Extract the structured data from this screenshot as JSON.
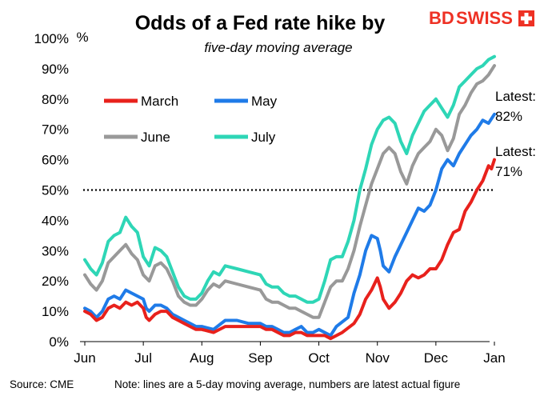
{
  "brand": {
    "logo_text_bd": "BD",
    "logo_text_swiss": "SWISS",
    "color": "#ee3124"
  },
  "footer": {
    "source": "Source: CME",
    "note": "Note: lines are a 5-day moving average, numbers are latest actual figure"
  },
  "chart_data": {
    "type": "line",
    "title": "Odds of a Fed rate hike by",
    "subtitle": "five-day moving average",
    "ylabel": "%",
    "xlabel": "",
    "ylim": [
      0,
      100
    ],
    "xlim": [
      0,
      7.0
    ],
    "y_ticks": [
      0,
      10,
      20,
      30,
      40,
      50,
      60,
      70,
      80,
      90,
      100
    ],
    "y_tick_labels": [
      "0%",
      "10%",
      "20%",
      "30%",
      "40%",
      "50%",
      "60%",
      "70%",
      "80%",
      "90%",
      "100%"
    ],
    "x_ticks": [
      0,
      1,
      2,
      3,
      4,
      5,
      6,
      7
    ],
    "x_tick_labels": [
      "Jun",
      "Jul",
      "Aug",
      "Sep",
      "Oct",
      "Nov",
      "Dec",
      "Jan"
    ],
    "reference_line": {
      "y": 50,
      "style": "dotted",
      "color": "#000000"
    },
    "legend": {
      "position": "upper-left",
      "columns": 2
    },
    "annotations": [
      {
        "line1": "Latest:",
        "line2": "82%",
        "x": 7.0,
        "y": 80
      },
      {
        "line1": "Latest:",
        "line2": "71%",
        "x": 7.0,
        "y": 60
      }
    ],
    "series": [
      {
        "name": "March",
        "color": "#e8211c",
        "points": [
          [
            0,
            10
          ],
          [
            0.1,
            9
          ],
          [
            0.2,
            7
          ],
          [
            0.3,
            8
          ],
          [
            0.4,
            11
          ],
          [
            0.5,
            12
          ],
          [
            0.6,
            11
          ],
          [
            0.7,
            13
          ],
          [
            0.8,
            12
          ],
          [
            0.9,
            13
          ],
          [
            1.0,
            11
          ],
          [
            1.05,
            8
          ],
          [
            1.1,
            7
          ],
          [
            1.2,
            9
          ],
          [
            1.3,
            10
          ],
          [
            1.4,
            10
          ],
          [
            1.5,
            8
          ],
          [
            1.6,
            7
          ],
          [
            1.7,
            6
          ],
          [
            1.8,
            5
          ],
          [
            1.9,
            4
          ],
          [
            2.0,
            4
          ],
          [
            2.2,
            3
          ],
          [
            2.4,
            5
          ],
          [
            2.6,
            5
          ],
          [
            2.8,
            5
          ],
          [
            3.0,
            5
          ],
          [
            3.1,
            4
          ],
          [
            3.2,
            4
          ],
          [
            3.3,
            3
          ],
          [
            3.4,
            2
          ],
          [
            3.5,
            2
          ],
          [
            3.6,
            3
          ],
          [
            3.7,
            3
          ],
          [
            3.8,
            2
          ],
          [
            3.9,
            2
          ],
          [
            4.0,
            2
          ],
          [
            4.1,
            2
          ],
          [
            4.2,
            1
          ],
          [
            4.4,
            3
          ],
          [
            4.6,
            6
          ],
          [
            4.7,
            9
          ],
          [
            4.8,
            14
          ],
          [
            4.9,
            17
          ],
          [
            5.0,
            21
          ],
          [
            5.05,
            18
          ],
          [
            5.1,
            14
          ],
          [
            5.2,
            11
          ],
          [
            5.3,
            13
          ],
          [
            5.4,
            16
          ],
          [
            5.5,
            20
          ],
          [
            5.6,
            22
          ],
          [
            5.7,
            21
          ],
          [
            5.8,
            22
          ],
          [
            5.9,
            24
          ],
          [
            6.0,
            24
          ],
          [
            6.1,
            27
          ],
          [
            6.2,
            32
          ],
          [
            6.3,
            36
          ],
          [
            6.4,
            37
          ],
          [
            6.5,
            43
          ],
          [
            6.6,
            46
          ],
          [
            6.7,
            50
          ],
          [
            6.8,
            53
          ],
          [
            6.9,
            58
          ],
          [
            6.95,
            57
          ],
          [
            7.0,
            60
          ]
        ]
      },
      {
        "name": "May",
        "color": "#1f7be8",
        "points": [
          [
            0,
            11
          ],
          [
            0.1,
            10
          ],
          [
            0.2,
            8
          ],
          [
            0.3,
            10
          ],
          [
            0.4,
            14
          ],
          [
            0.5,
            15
          ],
          [
            0.6,
            14
          ],
          [
            0.7,
            17
          ],
          [
            0.8,
            16
          ],
          [
            0.9,
            15
          ],
          [
            1.0,
            14
          ],
          [
            1.05,
            11
          ],
          [
            1.1,
            10
          ],
          [
            1.2,
            12
          ],
          [
            1.3,
            12
          ],
          [
            1.4,
            11
          ],
          [
            1.5,
            9
          ],
          [
            1.6,
            8
          ],
          [
            1.7,
            7
          ],
          [
            1.8,
            6
          ],
          [
            1.9,
            5
          ],
          [
            2.0,
            5
          ],
          [
            2.2,
            4
          ],
          [
            2.4,
            7
          ],
          [
            2.6,
            7
          ],
          [
            2.8,
            6
          ],
          [
            3.0,
            6
          ],
          [
            3.1,
            5
          ],
          [
            3.2,
            5
          ],
          [
            3.3,
            4
          ],
          [
            3.4,
            3
          ],
          [
            3.5,
            3
          ],
          [
            3.6,
            4
          ],
          [
            3.7,
            5
          ],
          [
            3.8,
            3
          ],
          [
            3.9,
            3
          ],
          [
            4.0,
            4
          ],
          [
            4.1,
            3
          ],
          [
            4.2,
            2
          ],
          [
            4.3,
            5
          ],
          [
            4.5,
            8
          ],
          [
            4.6,
            16
          ],
          [
            4.7,
            22
          ],
          [
            4.8,
            30
          ],
          [
            4.9,
            35
          ],
          [
            5.0,
            34
          ],
          [
            5.05,
            30
          ],
          [
            5.1,
            25
          ],
          [
            5.2,
            23
          ],
          [
            5.3,
            28
          ],
          [
            5.4,
            32
          ],
          [
            5.5,
            36
          ],
          [
            5.6,
            40
          ],
          [
            5.7,
            44
          ],
          [
            5.8,
            43
          ],
          [
            5.9,
            45
          ],
          [
            6.0,
            50
          ],
          [
            6.1,
            57
          ],
          [
            6.2,
            60
          ],
          [
            6.3,
            58
          ],
          [
            6.4,
            62
          ],
          [
            6.5,
            65
          ],
          [
            6.6,
            68
          ],
          [
            6.7,
            70
          ],
          [
            6.8,
            73
          ],
          [
            6.9,
            72
          ],
          [
            7.0,
            75
          ]
        ]
      },
      {
        "name": "June",
        "color": "#999999",
        "points": [
          [
            0,
            22
          ],
          [
            0.1,
            19
          ],
          [
            0.2,
            17
          ],
          [
            0.3,
            20
          ],
          [
            0.4,
            26
          ],
          [
            0.5,
            28
          ],
          [
            0.6,
            30
          ],
          [
            0.7,
            32
          ],
          [
            0.8,
            29
          ],
          [
            0.9,
            27
          ],
          [
            1.0,
            22
          ],
          [
            1.1,
            20
          ],
          [
            1.2,
            25
          ],
          [
            1.3,
            26
          ],
          [
            1.4,
            24
          ],
          [
            1.5,
            20
          ],
          [
            1.6,
            15
          ],
          [
            1.7,
            13
          ],
          [
            1.8,
            12
          ],
          [
            1.9,
            12
          ],
          [
            2.0,
            14
          ],
          [
            2.1,
            17
          ],
          [
            2.2,
            19
          ],
          [
            2.3,
            18
          ],
          [
            2.4,
            20
          ],
          [
            2.6,
            19
          ],
          [
            2.8,
            18
          ],
          [
            3.0,
            17
          ],
          [
            3.1,
            14
          ],
          [
            3.2,
            13
          ],
          [
            3.3,
            13
          ],
          [
            3.4,
            12
          ],
          [
            3.5,
            11
          ],
          [
            3.6,
            11
          ],
          [
            3.7,
            10
          ],
          [
            3.8,
            9
          ],
          [
            3.9,
            8
          ],
          [
            4.0,
            8
          ],
          [
            4.1,
            13
          ],
          [
            4.2,
            18
          ],
          [
            4.3,
            20
          ],
          [
            4.4,
            20
          ],
          [
            4.5,
            24
          ],
          [
            4.6,
            30
          ],
          [
            4.7,
            38
          ],
          [
            4.8,
            45
          ],
          [
            4.9,
            52
          ],
          [
            5.0,
            57
          ],
          [
            5.1,
            62
          ],
          [
            5.2,
            64
          ],
          [
            5.3,
            62
          ],
          [
            5.4,
            56
          ],
          [
            5.5,
            52
          ],
          [
            5.6,
            58
          ],
          [
            5.7,
            62
          ],
          [
            5.8,
            64
          ],
          [
            5.9,
            66
          ],
          [
            6.0,
            70
          ],
          [
            6.1,
            68
          ],
          [
            6.2,
            63
          ],
          [
            6.3,
            67
          ],
          [
            6.4,
            75
          ],
          [
            6.5,
            78
          ],
          [
            6.6,
            82
          ],
          [
            6.7,
            85
          ],
          [
            6.8,
            86
          ],
          [
            6.9,
            88
          ],
          [
            7.0,
            91
          ]
        ]
      },
      {
        "name": "July",
        "color": "#2ed6b6",
        "points": [
          [
            0,
            27
          ],
          [
            0.1,
            24
          ],
          [
            0.2,
            22
          ],
          [
            0.3,
            26
          ],
          [
            0.4,
            33
          ],
          [
            0.5,
            35
          ],
          [
            0.6,
            36
          ],
          [
            0.7,
            41
          ],
          [
            0.8,
            38
          ],
          [
            0.9,
            36
          ],
          [
            1.0,
            28
          ],
          [
            1.1,
            25
          ],
          [
            1.2,
            31
          ],
          [
            1.3,
            30
          ],
          [
            1.4,
            28
          ],
          [
            1.5,
            23
          ],
          [
            1.6,
            18
          ],
          [
            1.7,
            15
          ],
          [
            1.8,
            14
          ],
          [
            1.9,
            14
          ],
          [
            2.0,
            16
          ],
          [
            2.1,
            20
          ],
          [
            2.2,
            23
          ],
          [
            2.3,
            22
          ],
          [
            2.4,
            25
          ],
          [
            2.6,
            24
          ],
          [
            2.8,
            23
          ],
          [
            3.0,
            22
          ],
          [
            3.1,
            19
          ],
          [
            3.2,
            18
          ],
          [
            3.3,
            18
          ],
          [
            3.4,
            16
          ],
          [
            3.5,
            15
          ],
          [
            3.6,
            15
          ],
          [
            3.7,
            14
          ],
          [
            3.8,
            13
          ],
          [
            3.9,
            13
          ],
          [
            4.0,
            14
          ],
          [
            4.1,
            20
          ],
          [
            4.2,
            27
          ],
          [
            4.3,
            28
          ],
          [
            4.4,
            28
          ],
          [
            4.5,
            33
          ],
          [
            4.6,
            40
          ],
          [
            4.7,
            50
          ],
          [
            4.8,
            57
          ],
          [
            4.9,
            65
          ],
          [
            5.0,
            70
          ],
          [
            5.1,
            73
          ],
          [
            5.2,
            74
          ],
          [
            5.3,
            72
          ],
          [
            5.4,
            66
          ],
          [
            5.5,
            62
          ],
          [
            5.6,
            68
          ],
          [
            5.7,
            72
          ],
          [
            5.8,
            76
          ],
          [
            5.9,
            78
          ],
          [
            6.0,
            80
          ],
          [
            6.1,
            77
          ],
          [
            6.2,
            74
          ],
          [
            6.3,
            78
          ],
          [
            6.4,
            84
          ],
          [
            6.5,
            86
          ],
          [
            6.6,
            88
          ],
          [
            6.7,
            90
          ],
          [
            6.8,
            91
          ],
          [
            6.9,
            93
          ],
          [
            7.0,
            94
          ]
        ]
      }
    ]
  }
}
